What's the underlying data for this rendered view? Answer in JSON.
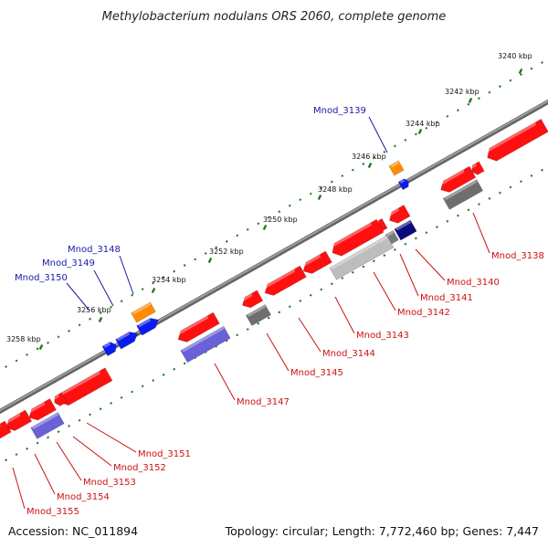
{
  "title": "Methylobacterium nodulans ORS 2060, complete genome",
  "footer": {
    "accession": "Accession: NC_011894",
    "topology": "Topology: circular; Length: 7,772,460 bp; Genes: 7,447"
  },
  "colors": {
    "backbone": "#7a7a7a",
    "tick": "#1f7a1f",
    "forward_label": "#1a1aa8",
    "reverse_label": "#cc1111"
  },
  "ruler": [
    {
      "label": "3240 kbp"
    },
    {
      "label": "3242 kbp"
    },
    {
      "label": "3244 kbp"
    },
    {
      "label": "3246 kbp"
    },
    {
      "label": "3248 kbp"
    },
    {
      "label": "3250 kbp"
    },
    {
      "label": "3252 kbp"
    },
    {
      "label": "3254 kbp"
    },
    {
      "label": "3256 kbp"
    },
    {
      "label": "3258 kbp"
    }
  ],
  "forward_genes": [
    {
      "label": "Mnod_3139",
      "color": "#ff8c00"
    },
    {
      "label": "Mnod_3148",
      "color": "#ff8c00"
    },
    {
      "label": "Mnod_3149",
      "color": "#0b1cf0"
    },
    {
      "label": "Mnod_3150",
      "color": "#0b1cf0"
    }
  ],
  "reverse_genes": [
    {
      "label": "Mnod_3138",
      "color": "#7a7a7a"
    },
    {
      "label": "Mnod_3140",
      "color": "#0a0a80"
    },
    {
      "label": "Mnod_3141",
      "color": "#7a7a7a"
    },
    {
      "label": "Mnod_3142",
      "color": "#bdbdbd"
    },
    {
      "label": "Mnod_3143",
      "color": "#ff1010"
    },
    {
      "label": "Mnod_3144",
      "color": "#ff1010"
    },
    {
      "label": "Mnod_3145",
      "color": "#7a7a7a"
    },
    {
      "label": "Mnod_3147",
      "color": "#6a60d8"
    },
    {
      "label": "Mnod_3151",
      "color": "#ff1010"
    },
    {
      "label": "Mnod_3152",
      "color": "#ff1010"
    },
    {
      "label": "Mnod_3153",
      "color": "#ff1010"
    },
    {
      "label": "Mnod_3154",
      "color": "#6a60d8"
    },
    {
      "label": "Mnod_3155",
      "color": "#ff1010"
    }
  ]
}
